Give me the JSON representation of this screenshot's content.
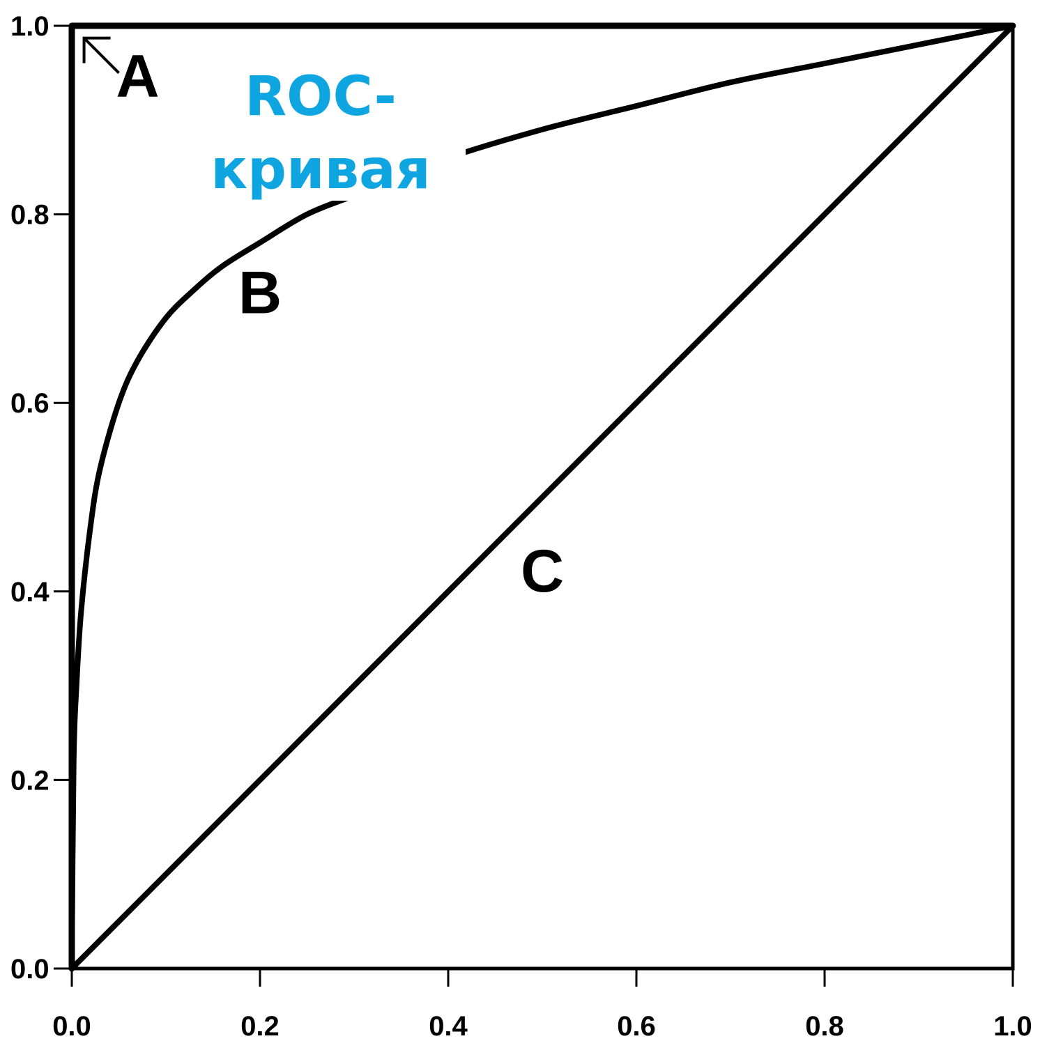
{
  "chart_data": {
    "type": "line",
    "title": "ROC-кривая",
    "title_lines": [
      "ROC-",
      "кривая"
    ],
    "title_color": "#0ea5e0",
    "xlabel": "",
    "ylabel": "",
    "xlim": [
      0.0,
      1.0
    ],
    "ylim": [
      0.0,
      1.0
    ],
    "x_ticks": [
      "0.0",
      "0.2",
      "0.4",
      "0.6",
      "0.8",
      "1.0"
    ],
    "y_ticks": [
      "0.0",
      "0.2",
      "0.4",
      "0.6",
      "0.8",
      "1.0"
    ],
    "grid": false,
    "series": [
      {
        "name": "A",
        "x": [
          0.0,
          0.0,
          1.0
        ],
        "y": [
          0.0,
          1.0,
          1.0
        ]
      },
      {
        "name": "B",
        "x": [
          0.0,
          0.002,
          0.005,
          0.01,
          0.02,
          0.03,
          0.05,
          0.07,
          0.1,
          0.13,
          0.16,
          0.2,
          0.25,
          0.3,
          0.35,
          0.4,
          0.5,
          0.6,
          0.7,
          0.8,
          0.9,
          1.0
        ],
        "y": [
          0.0,
          0.22,
          0.3,
          0.38,
          0.47,
          0.53,
          0.6,
          0.645,
          0.69,
          0.72,
          0.745,
          0.77,
          0.8,
          0.82,
          0.84,
          0.86,
          0.89,
          0.915,
          0.94,
          0.96,
          0.98,
          1.0
        ]
      },
      {
        "name": "C",
        "x": [
          0.0,
          1.0
        ],
        "y": [
          0.0,
          1.0
        ]
      }
    ],
    "labels": [
      {
        "text": "A",
        "x": 0.07,
        "y": 0.925
      },
      {
        "text": "B",
        "x": 0.2,
        "y": 0.695
      },
      {
        "text": "C",
        "x": 0.5,
        "y": 0.4
      }
    ],
    "arrow": {
      "from": [
        0.05,
        0.95
      ],
      "to": [
        0.013,
        0.987
      ]
    }
  }
}
